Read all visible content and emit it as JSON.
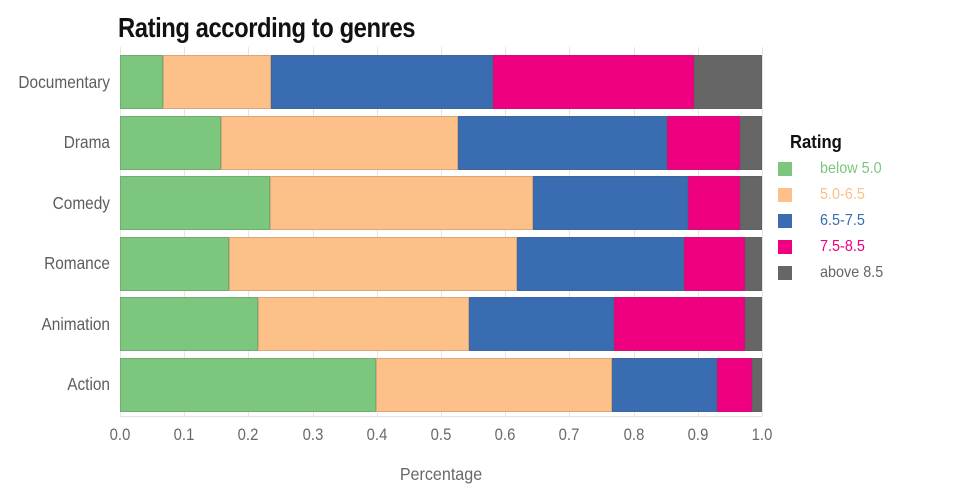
{
  "title": "Rating according to genres",
  "legend": {
    "title": "Rating"
  },
  "chart_data": {
    "type": "bar",
    "orientation": "horizontal",
    "stacked": true,
    "title": "Rating according to genres",
    "xlabel": "Percentage",
    "ylabel": "",
    "xlim": [
      0.0,
      1.0
    ],
    "grid": true,
    "legend_position": "right",
    "x_tick_labels": [
      "0.0",
      "0.1",
      "0.2",
      "0.3",
      "0.4",
      "0.5",
      "0.6",
      "0.7",
      "0.8",
      "0.9",
      "1.0"
    ],
    "categories": [
      "Documentary",
      "Drama",
      "Comedy",
      "Romance",
      "Animation",
      "Action"
    ],
    "series": [
      {
        "name": "below 5.0",
        "color": "#7cc67d",
        "values": [
          0.067,
          0.157,
          0.233,
          0.17,
          0.215,
          0.399
        ]
      },
      {
        "name": "5.0-6.5",
        "color": "#fcc088",
        "values": [
          0.168,
          0.369,
          0.411,
          0.449,
          0.328,
          0.368
        ]
      },
      {
        "name": "6.5-7.5",
        "color": "#3a6cb2",
        "values": [
          0.346,
          0.326,
          0.24,
          0.259,
          0.227,
          0.163
        ]
      },
      {
        "name": "7.5-8.5",
        "color": "#ee0080",
        "values": [
          0.313,
          0.114,
          0.081,
          0.095,
          0.203,
          0.054
        ]
      },
      {
        "name": "above 8.5",
        "color": "#666666",
        "values": [
          0.106,
          0.034,
          0.035,
          0.027,
          0.027,
          0.016
        ]
      }
    ]
  }
}
